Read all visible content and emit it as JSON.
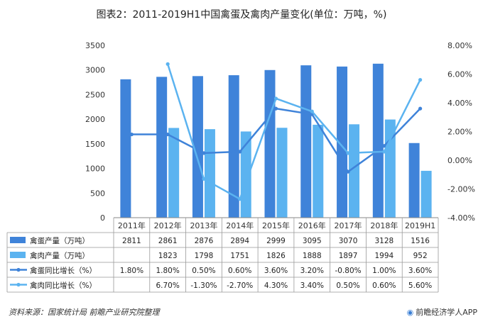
{
  "title": "图表2：2011-2019H1中国禽蛋及禽肉产量变化(单位：万吨，%)",
  "source": "资料来源：国家统计局 前瞻产业研究院整理",
  "brand": "前瞻经济学人APP",
  "chart_data": {
    "type": "bar",
    "categories": [
      "2011年",
      "2012年",
      "2013年",
      "2014年",
      "2015年",
      "2016年",
      "2017年",
      "2018年",
      "2019H1"
    ],
    "y_left": {
      "min": 0,
      "max": 3500,
      "ticks": [
        0,
        500,
        1000,
        1500,
        2000,
        2500,
        3000,
        3500
      ]
    },
    "y_right": {
      "min": -4,
      "max": 8,
      "ticks": [
        "-4.00%",
        "-2.00%",
        "0.00%",
        "2.00%",
        "4.00%",
        "6.00%",
        "8.00%"
      ]
    },
    "series": [
      {
        "name": "禽蛋产量（万吨）",
        "kind": "bar",
        "axis": "left",
        "color": "#3f83d9",
        "values": [
          2811,
          2861,
          2876,
          2894,
          2999,
          3095,
          3070,
          3128,
          1516
        ],
        "labels": [
          "2811",
          "2861",
          "2876",
          "2894",
          "2999",
          "3095",
          "3070",
          "3128",
          "1516"
        ]
      },
      {
        "name": "禽肉产量（万吨）",
        "kind": "bar",
        "axis": "left",
        "color": "#5bb3f0",
        "values": [
          null,
          1823,
          1798,
          1751,
          1826,
          1888,
          1897,
          1994,
          952
        ],
        "labels": [
          "",
          "1823",
          "1798",
          "1751",
          "1826",
          "1888",
          "1897",
          "1994",
          "952"
        ]
      },
      {
        "name": "禽蛋同比增长（%）",
        "kind": "line",
        "axis": "right",
        "color": "#3f83d9",
        "values": [
          1.8,
          1.8,
          0.5,
          0.6,
          3.6,
          3.2,
          -0.8,
          1.0,
          3.6
        ],
        "labels": [
          "1.80%",
          "1.80%",
          "0.50%",
          "0.60%",
          "3.60%",
          "3.20%",
          "-0.80%",
          "1.00%",
          "3.60%"
        ]
      },
      {
        "name": "禽肉同比增长（%）",
        "kind": "line",
        "axis": "right",
        "color": "#5bb3f0",
        "values": [
          null,
          6.7,
          -1.3,
          -2.7,
          4.3,
          3.4,
          0.5,
          0.6,
          5.6
        ],
        "labels": [
          "",
          "6.70%",
          "-1.30%",
          "-2.70%",
          "4.30%",
          "3.40%",
          "0.50%",
          "0.60%",
          "5.60%"
        ]
      }
    ],
    "grid": false,
    "legend": "table"
  }
}
